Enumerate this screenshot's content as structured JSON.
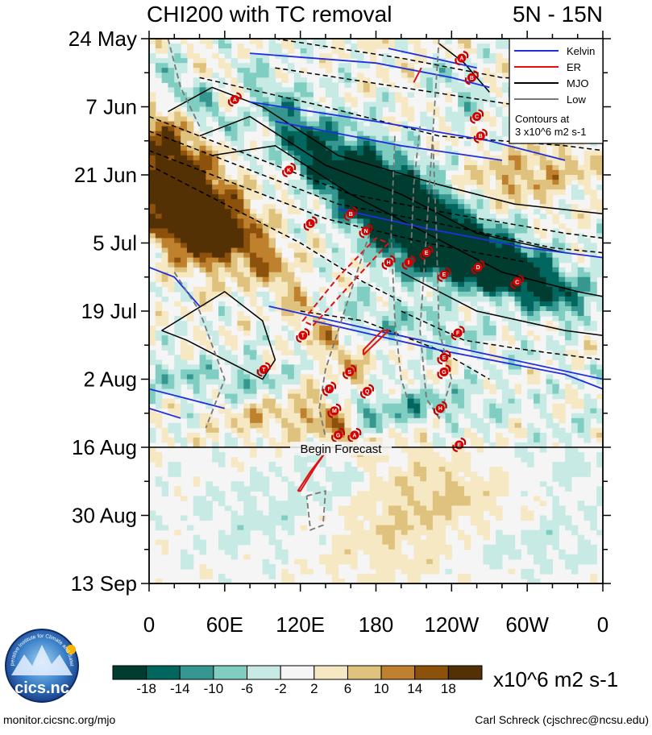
{
  "chart_data": {
    "type": "heatmap",
    "title_left": "CHI200 with TC removal",
    "title_right": "5N - 15N",
    "x_ticks": [
      "0",
      "60E",
      "120E",
      "180",
      "120W",
      "60W",
      "0"
    ],
    "x_values": [
      0,
      60,
      120,
      180,
      240,
      300,
      360
    ],
    "y_ticks": [
      "24 May",
      "7 Jun",
      "21 Jun",
      "5 Jul",
      "19 Jul",
      "2 Aug",
      "16 Aug",
      "30 Aug",
      "13 Sep"
    ],
    "y_day_offsets": [
      0,
      14,
      28,
      42,
      56,
      70,
      84,
      98,
      112
    ],
    "xlim": [
      0,
      360
    ],
    "ylim_days": [
      0,
      112
    ],
    "forecast_start_day": 84,
    "annotation": "Begin Forecast",
    "legend": [
      {
        "label": "Kelvin",
        "color": "#1f2fe0"
      },
      {
        "label": "ER",
        "color": "#e01010"
      },
      {
        "label": "MJO",
        "color": "#000000"
      },
      {
        "label": "Low",
        "color": "#777777"
      }
    ],
    "legend_note_1": "Contours at",
    "legend_note_2": "3 x10^6 m2 s-1",
    "colorbar": {
      "levels": [
        "-18",
        "-14",
        "-10",
        "-6",
        "-2",
        "2",
        "6",
        "10",
        "14",
        "18"
      ],
      "colors": [
        "#003c30",
        "#01665e",
        "#35978f",
        "#80cdc1",
        "#c7eae5",
        "#f5f5f5",
        "#f6e8c3",
        "#dfc27d",
        "#bf812d",
        "#8c510a",
        "#543005"
      ],
      "units": "x10^6 m2 s-1"
    },
    "storms": [
      {
        "letter": "A",
        "lon": 248,
        "day": 4
      },
      {
        "letter": "B",
        "lon": 256,
        "day": 8
      },
      {
        "letter": "A",
        "lon": 68,
        "day": 12.5
      },
      {
        "letter": "C",
        "lon": 260,
        "day": 16
      },
      {
        "letter": "B",
        "lon": 263,
        "day": 20
      },
      {
        "letter": "K",
        "lon": 111,
        "day": 27
      },
      {
        "letter": "B",
        "lon": 160,
        "day": 36
      },
      {
        "letter": "L",
        "lon": 128,
        "day": 38
      },
      {
        "letter": "N",
        "lon": 172,
        "day": 39.5
      },
      {
        "letter": "E",
        "lon": 220,
        "day": 44
      },
      {
        "letter": "H",
        "lon": 190,
        "day": 46
      },
      {
        "letter": "I",
        "lon": 206,
        "day": 46
      },
      {
        "letter": "D",
        "lon": 261,
        "day": 47
      },
      {
        "letter": "E",
        "lon": 234,
        "day": 48.5
      },
      {
        "letter": "C",
        "lon": 292,
        "day": 50
      },
      {
        "letter": "T",
        "lon": 122,
        "day": 61
      },
      {
        "letter": "F",
        "lon": 245,
        "day": 60.5
      },
      {
        "letter": "E",
        "lon": 234,
        "day": 65.5
      },
      {
        "letter": "T",
        "lon": 91,
        "day": 68
      },
      {
        "letter": "S",
        "lon": 159,
        "day": 68.5
      },
      {
        "letter": "G",
        "lon": 234,
        "day": 68.5
      },
      {
        "letter": "F",
        "lon": 143,
        "day": 72
      },
      {
        "letter": "Q",
        "lon": 173,
        "day": 72.5
      },
      {
        "letter": "M",
        "lon": 147,
        "day": 76.5
      },
      {
        "letter": "H",
        "lon": 231,
        "day": 76
      },
      {
        "letter": "G",
        "lon": 150,
        "day": 81.5
      },
      {
        "letter": "A",
        "lon": 163,
        "day": 81.5
      },
      {
        "letter": "E",
        "lon": 246,
        "day": 83.5
      }
    ]
  },
  "footer": {
    "logo_text": "cics.nc",
    "logo_ring": "Cooperative Institute for Climate and Satellites",
    "url": "monitor.cicsnc.org/mjo",
    "credit": "Carl Schreck (cjschrec@ncsu.edu)"
  }
}
